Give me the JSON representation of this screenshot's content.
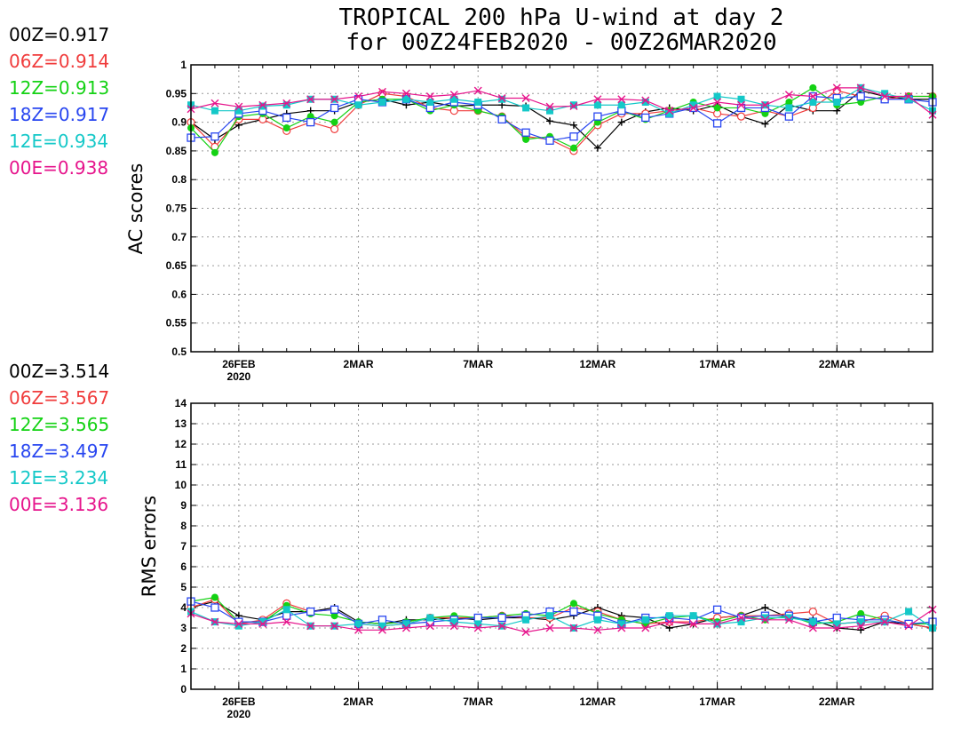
{
  "title": {
    "line1": "TROPICAL 200 hPa U-wind at day 2",
    "line2": "for 00Z24FEB2020 - 00Z26MAR2020"
  },
  "colors": {
    "00Z": "#000000",
    "06Z": "#f03c3c",
    "12Z": "#14d214",
    "18Z": "#2846f0",
    "12E": "#14c8c8",
    "00E": "#e6148c"
  },
  "ac_scores": [
    {
      "label": "00Z=0.917",
      "color": "#000000"
    },
    {
      "label": "06Z=0.914",
      "color": "#f03c3c"
    },
    {
      "label": "12Z=0.913",
      "color": "#14d214"
    },
    {
      "label": "18Z=0.917",
      "color": "#2846f0"
    },
    {
      "label": "12E=0.934",
      "color": "#14c8c8"
    },
    {
      "label": "00E=0.938",
      "color": "#e6148c"
    }
  ],
  "rms_scores": [
    {
      "label": "00Z=3.514",
      "color": "#000000"
    },
    {
      "label": "06Z=3.567",
      "color": "#f03c3c"
    },
    {
      "label": "12Z=3.565",
      "color": "#14d214"
    },
    {
      "label": "18Z=3.497",
      "color": "#2846f0"
    },
    {
      "label": "12E=3.234",
      "color": "#14c8c8"
    },
    {
      "label": "00E=3.136",
      "color": "#e6148c"
    }
  ],
  "chart_data": [
    {
      "type": "line",
      "ylabel": "AC scores",
      "ylim": [
        0.5,
        1
      ],
      "yticks": [
        "0.5",
        "0.55",
        "0.6",
        "0.65",
        "0.7",
        "0.75",
        "0.8",
        "0.85",
        "0.9",
        "0.95",
        "1"
      ],
      "xticks": [
        {
          "x": 2,
          "label": "26FEB",
          "sub": "2020"
        },
        {
          "x": 7,
          "label": "2MAR",
          "sub": ""
        },
        {
          "x": 12,
          "label": "7MAR",
          "sub": ""
        },
        {
          "x": 17,
          "label": "12MAR",
          "sub": ""
        },
        {
          "x": 22,
          "label": "17MAR",
          "sub": ""
        },
        {
          "x": 27,
          "label": "22MAR",
          "sub": ""
        }
      ],
      "xlim": [
        0,
        31
      ],
      "grid": true,
      "x": [
        0,
        1,
        2,
        3,
        4,
        5,
        6,
        7,
        8,
        9,
        10,
        11,
        12,
        13,
        14,
        15,
        16,
        17,
        18,
        19,
        20,
        21,
        22,
        23,
        24,
        25,
        26,
        27,
        28,
        29,
        30,
        31
      ],
      "series": [
        {
          "key": "00Z",
          "marker": "plus",
          "values": [
            0.9,
            0.87,
            0.895,
            0.905,
            0.915,
            0.92,
            0.92,
            0.935,
            0.94,
            0.93,
            0.935,
            0.928,
            0.93,
            0.93,
            0.928,
            0.902,
            0.895,
            0.855,
            0.9,
            0.918,
            0.925,
            0.92,
            0.93,
            0.91,
            0.897,
            0.93,
            0.92,
            0.92,
            0.955,
            0.945,
            0.94,
            0.94
          ]
        },
        {
          "key": "06Z",
          "marker": "circle",
          "values": [
            0.9,
            0.857,
            0.905,
            0.905,
            0.885,
            0.9,
            0.888,
            0.93,
            0.95,
            0.945,
            0.925,
            0.92,
            0.92,
            0.91,
            0.875,
            0.87,
            0.85,
            0.895,
            0.915,
            0.915,
            0.92,
            0.925,
            0.915,
            0.91,
            0.92,
            0.91,
            0.925,
            0.955,
            0.945,
            0.94,
            0.945,
            0.945
          ]
        },
        {
          "key": "12Z",
          "marker": "dot",
          "values": [
            0.89,
            0.847,
            0.91,
            0.915,
            0.89,
            0.91,
            0.9,
            0.935,
            0.94,
            0.94,
            0.92,
            0.93,
            0.92,
            0.91,
            0.87,
            0.875,
            0.855,
            0.9,
            0.92,
            0.905,
            0.92,
            0.935,
            0.925,
            0.925,
            0.915,
            0.935,
            0.96,
            0.93,
            0.935,
            0.945,
            0.945,
            0.945
          ]
        },
        {
          "key": "18Z",
          "marker": "square",
          "values": [
            0.873,
            0.875,
            0.915,
            0.92,
            0.908,
            0.9,
            0.925,
            0.94,
            0.935,
            0.94,
            0.925,
            0.935,
            0.93,
            0.905,
            0.882,
            0.868,
            0.875,
            0.91,
            0.92,
            0.908,
            0.915,
            0.925,
            0.898,
            0.925,
            0.925,
            0.91,
            0.945,
            0.942,
            0.945,
            0.94,
            0.94,
            0.935
          ]
        },
        {
          "key": "12E",
          "marker": "filled-square",
          "values": [
            0.93,
            0.92,
            0.92,
            0.928,
            0.93,
            0.94,
            0.94,
            0.93,
            0.935,
            0.94,
            0.935,
            0.94,
            0.935,
            0.94,
            0.925,
            0.92,
            0.93,
            0.93,
            0.93,
            0.935,
            0.915,
            0.93,
            0.945,
            0.94,
            0.93,
            0.925,
            0.935,
            0.935,
            0.96,
            0.95,
            0.94,
            0.92
          ]
        },
        {
          "key": "00E",
          "marker": "x",
          "values": [
            0.923,
            0.933,
            0.927,
            0.93,
            0.933,
            0.94,
            0.94,
            0.945,
            0.953,
            0.95,
            0.945,
            0.948,
            0.955,
            0.942,
            0.942,
            0.927,
            0.928,
            0.94,
            0.94,
            0.938,
            0.92,
            0.925,
            0.935,
            0.93,
            0.93,
            0.948,
            0.945,
            0.96,
            0.96,
            0.945,
            0.945,
            0.913
          ]
        }
      ]
    },
    {
      "type": "line",
      "ylabel": "RMS errors",
      "ylim": [
        0,
        14
      ],
      "yticks": [
        "0",
        "1",
        "2",
        "3",
        "4",
        "5",
        "6",
        "7",
        "8",
        "9",
        "10",
        "11",
        "12",
        "13",
        "14"
      ],
      "xticks": [
        {
          "x": 2,
          "label": "26FEB",
          "sub": "2020"
        },
        {
          "x": 7,
          "label": "2MAR",
          "sub": ""
        },
        {
          "x": 12,
          "label": "7MAR",
          "sub": ""
        },
        {
          "x": 17,
          "label": "12MAR",
          "sub": ""
        },
        {
          "x": 22,
          "label": "17MAR",
          "sub": ""
        },
        {
          "x": 27,
          "label": "22MAR",
          "sub": ""
        }
      ],
      "xlim": [
        0,
        31
      ],
      "grid": true,
      "x": [
        0,
        1,
        2,
        3,
        4,
        5,
        6,
        7,
        8,
        9,
        10,
        11,
        12,
        13,
        14,
        15,
        16,
        17,
        18,
        19,
        20,
        21,
        22,
        23,
        24,
        25,
        26,
        27,
        28,
        29,
        30,
        31
      ],
      "series": [
        {
          "key": "00Z",
          "marker": "plus",
          "values": [
            4.0,
            4.3,
            3.6,
            3.4,
            3.8,
            3.8,
            4.0,
            3.3,
            3.2,
            3.4,
            3.4,
            3.5,
            3.4,
            3.5,
            3.5,
            3.4,
            3.6,
            4.0,
            3.6,
            3.5,
            3.0,
            3.2,
            3.5,
            3.6,
            4.0,
            3.5,
            3.4,
            3.0,
            2.9,
            3.3,
            3.2,
            3.0
          ]
        },
        {
          "key": "06Z",
          "marker": "circle",
          "values": [
            4.0,
            4.4,
            3.2,
            3.4,
            4.2,
            3.8,
            3.9,
            3.2,
            3.1,
            3.2,
            3.5,
            3.5,
            3.5,
            3.6,
            3.5,
            3.5,
            4.0,
            3.8,
            3.4,
            3.2,
            3.3,
            3.3,
            3.5,
            3.6,
            3.6,
            3.7,
            3.8,
            3.2,
            3.3,
            3.6,
            3.2,
            3.0
          ]
        },
        {
          "key": "12Z",
          "marker": "dot",
          "values": [
            4.3,
            4.5,
            3.3,
            3.3,
            4.1,
            3.7,
            3.6,
            3.3,
            3.2,
            3.3,
            3.5,
            3.6,
            3.5,
            3.6,
            3.7,
            3.6,
            4.2,
            3.7,
            3.4,
            3.2,
            3.5,
            3.6,
            3.3,
            3.6,
            3.4,
            3.6,
            3.2,
            3.3,
            3.7,
            3.4,
            3.2,
            3.2
          ]
        },
        {
          "key": "18Z",
          "marker": "square",
          "values": [
            4.3,
            4.0,
            3.3,
            3.3,
            3.6,
            3.8,
            3.9,
            3.2,
            3.4,
            3.2,
            3.3,
            3.4,
            3.5,
            3.5,
            3.6,
            3.8,
            3.8,
            3.6,
            3.2,
            3.5,
            3.5,
            3.4,
            3.9,
            3.5,
            3.6,
            3.6,
            3.3,
            3.5,
            3.4,
            3.4,
            3.2,
            3.3
          ]
        },
        {
          "key": "12E",
          "marker": "filled-square",
          "values": [
            3.8,
            3.3,
            3.1,
            3.3,
            3.9,
            3.1,
            3.1,
            3.2,
            3.1,
            3.2,
            3.5,
            3.3,
            3.2,
            3.1,
            3.4,
            3.6,
            3.0,
            3.4,
            3.2,
            3.4,
            3.6,
            3.6,
            3.2,
            3.3,
            3.5,
            3.5,
            3.3,
            3.2,
            3.3,
            3.3,
            3.8,
            3.0
          ]
        },
        {
          "key": "00E",
          "marker": "x",
          "values": [
            3.7,
            3.3,
            3.2,
            3.2,
            3.3,
            3.1,
            3.1,
            2.9,
            2.9,
            3.0,
            3.1,
            3.1,
            3.0,
            3.1,
            2.8,
            3.0,
            3.0,
            2.9,
            3.0,
            3.0,
            3.3,
            3.2,
            3.2,
            3.5,
            3.4,
            3.4,
            3.0,
            3.0,
            3.1,
            3.3,
            3.1,
            3.9
          ]
        }
      ]
    }
  ]
}
